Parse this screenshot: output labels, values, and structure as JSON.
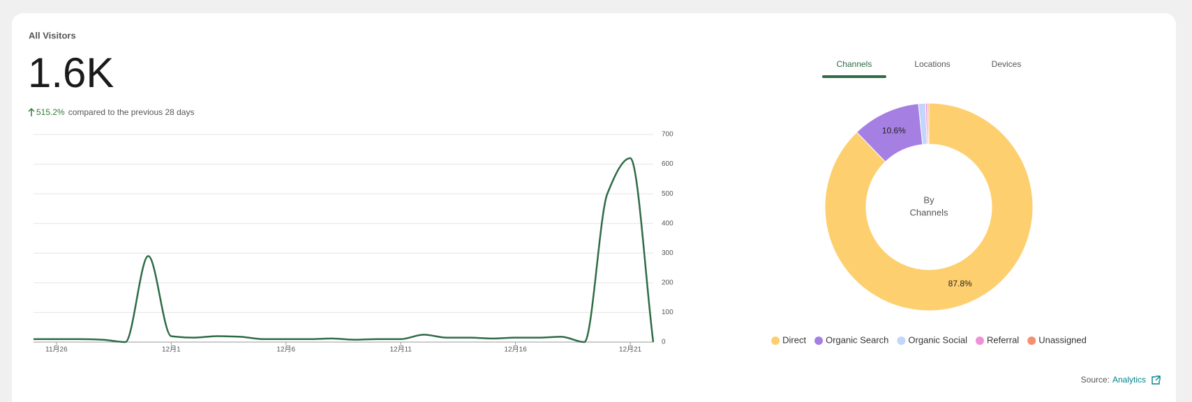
{
  "header": {
    "title": "All Visitors",
    "value": "1.6K",
    "change": "515.2%",
    "comparison": "compared to the previous 28 days"
  },
  "tabs": {
    "items": [
      "Channels",
      "Locations",
      "Devices"
    ],
    "active": 0
  },
  "chart_data": [
    {
      "type": "line",
      "categories": [
        null,
        "11月26",
        null,
        null,
        null,
        null,
        "12月1",
        null,
        null,
        null,
        null,
        "12月6",
        null,
        null,
        null,
        null,
        "12月11",
        null,
        null,
        null,
        null,
        "12月16",
        null,
        null,
        null,
        null,
        "12月21",
        null
      ],
      "values": [
        10,
        10,
        10,
        8,
        0,
        290,
        20,
        15,
        20,
        18,
        10,
        10,
        10,
        12,
        8,
        10,
        10,
        25,
        15,
        15,
        12,
        15,
        15,
        18,
        0,
        500,
        620,
        0
      ],
      "color": "#2e6b46",
      "ylim": [
        0,
        700
      ],
      "yticks": [
        0,
        100,
        200,
        300,
        400,
        500,
        600,
        700
      ],
      "grid": true
    },
    {
      "type": "pie",
      "categories": [
        "Direct",
        "Organic Search",
        "Organic Social",
        "Referral",
        "Unassigned"
      ],
      "values": [
        87.8,
        10.6,
        1.1,
        0.3,
        0.2
      ],
      "value_labels": [
        "87.8%",
        "10.6%",
        null,
        null,
        null
      ],
      "colors": [
        "#fdcf6f",
        "#a67fe3",
        "#c2d5fa",
        "#f190d6",
        "#f4906f"
      ],
      "center_label": [
        "By",
        "Channels"
      ]
    }
  ],
  "source": {
    "label": "Source:",
    "link": "Analytics"
  }
}
